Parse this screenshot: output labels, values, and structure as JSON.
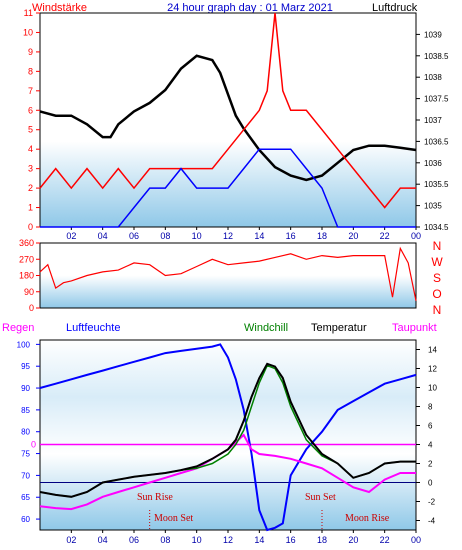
{
  "header": {
    "left_label": "Windstärke",
    "title": "24 hour graph day : 01 Marz 2021",
    "right_label": "Luftdruck"
  },
  "top_chart": {
    "type": "line",
    "wind_ticks": [
      "0",
      "1",
      "2",
      "3",
      "4",
      "5",
      "6",
      "7",
      "8",
      "9",
      "10",
      "11"
    ],
    "pressure_ticks": [
      "1034.5",
      "1035",
      "1035.5",
      "1036",
      "1036.5",
      "1037",
      "1037.5",
      "1038",
      "1038.5",
      "1039"
    ],
    "x_ticks": [
      "02",
      "04",
      "06",
      "08",
      "10",
      "12",
      "14",
      "16",
      "18",
      "20",
      "22",
      "00"
    ],
    "wind_ylim": [
      0,
      11
    ],
    "pressure_ylim": [
      1034.5,
      1039.5
    ],
    "series": [
      {
        "color": "#000000",
        "axis": "right",
        "x": [
          0,
          1,
          2,
          3,
          4,
          4.5,
          5,
          6,
          7,
          8,
          9,
          10,
          11,
          11.5,
          12,
          12.5,
          13,
          14,
          15,
          16,
          17,
          18,
          19,
          20,
          21,
          22,
          23,
          24
        ],
        "y": [
          1037.2,
          1037.1,
          1037.1,
          1036.9,
          1036.6,
          1036.6,
          1036.9,
          1037.2,
          1037.4,
          1037.7,
          1038.2,
          1038.5,
          1038.4,
          1038.1,
          1037.6,
          1037.1,
          1036.8,
          1036.3,
          1035.9,
          1035.7,
          1035.6,
          1035.7,
          1036.0,
          1036.3,
          1036.4,
          1036.4,
          1036.35,
          1036.3
        ]
      },
      {
        "color": "#ff0000",
        "axis": "left",
        "x": [
          0,
          1,
          2,
          3,
          4,
          5,
          6,
          7,
          8,
          9,
          10,
          11,
          12,
          13,
          14,
          14.5,
          15,
          15.5,
          16,
          17,
          18,
          19,
          20,
          21,
          22,
          23,
          24
        ],
        "y": [
          2,
          3,
          2,
          3,
          2,
          3,
          2,
          3,
          3,
          3,
          3,
          3,
          4,
          5,
          6,
          7,
          11,
          7,
          6,
          6,
          5,
          4,
          3,
          2,
          1,
          2,
          2
        ]
      },
      {
        "color": "#0000ff",
        "axis": "left",
        "x": [
          0,
          1,
          2,
          3,
          4,
          5,
          6,
          7,
          8,
          9,
          10,
          11,
          12,
          13,
          14,
          15,
          16,
          17,
          18,
          19,
          20,
          21,
          22,
          23,
          24
        ],
        "y": [
          0,
          0,
          0,
          0,
          0,
          0,
          1,
          2,
          2,
          3,
          2,
          2,
          2,
          3,
          4,
          4,
          4,
          3,
          2,
          0,
          0,
          0,
          0,
          0,
          0
        ]
      }
    ]
  },
  "mid_chart": {
    "type": "line",
    "y_ticks": [
      "0",
      "90",
      "180",
      "270",
      "360"
    ],
    "ylim": [
      0,
      360
    ],
    "compass": [
      "N",
      "W",
      "S",
      "O",
      "N"
    ],
    "x": [
      0,
      0.5,
      1,
      1.5,
      2,
      3,
      4,
      5,
      6,
      7,
      8,
      9,
      10,
      11,
      12,
      13,
      14,
      15,
      16,
      17,
      18,
      19,
      20,
      21,
      22,
      22.5,
      23,
      23.5,
      24
    ],
    "y": [
      200,
      240,
      110,
      140,
      150,
      180,
      200,
      210,
      250,
      240,
      180,
      190,
      230,
      270,
      240,
      250,
      260,
      280,
      300,
      270,
      290,
      280,
      290,
      290,
      290,
      60,
      330,
      250,
      40
    ]
  },
  "bottom_chart": {
    "type": "line",
    "labels": {
      "regen": "Regen",
      "luftfeuchte": "Luftfeuchte",
      "windchill": "Windchill",
      "temperatur": "Temperatur",
      "taupunkt": "Taupunkt"
    },
    "humidity_ticks": [
      "60",
      "65",
      "70",
      "75",
      "80",
      "85",
      "90",
      "95",
      "100"
    ],
    "humidity_ylim": [
      57.5,
      101
    ],
    "temp_ticks": [
      "-4",
      "-2",
      "0",
      "2",
      "4",
      "6",
      "8",
      "10",
      "12",
      "14"
    ],
    "temp_ylim": [
      -5,
      15
    ],
    "rain_tick": "0",
    "x_ticks": [
      "02",
      "04",
      "06",
      "08",
      "10",
      "12",
      "14",
      "16",
      "18",
      "20",
      "22",
      "00"
    ],
    "annotations": {
      "sun_rise": "Sun Rise",
      "moon_set": "Moon Set",
      "sun_set": "Sun Set",
      "moon_rise": "Moon Rise"
    },
    "humidity": {
      "color": "#0000ff",
      "x": [
        0,
        1,
        2,
        3,
        4,
        5,
        6,
        7,
        8,
        9,
        10,
        11,
        11.5,
        12,
        12.5,
        13,
        13.5,
        14,
        14.5,
        15,
        15.5,
        16,
        17,
        18,
        19,
        20,
        21,
        22,
        23,
        24
      ],
      "y": [
        90,
        91,
        92,
        93,
        94,
        95,
        96,
        97,
        98,
        98.5,
        99,
        99.5,
        100,
        97,
        92,
        85,
        75,
        62,
        57.5,
        58,
        59,
        70,
        76,
        80,
        85,
        87,
        89,
        91,
        92,
        93
      ]
    },
    "temperature": {
      "color": "#000000",
      "x": [
        0,
        1,
        2,
        3,
        4,
        5,
        6,
        7,
        8,
        9,
        10,
        11,
        12,
        12.5,
        13,
        13.5,
        14,
        14.5,
        15,
        15.5,
        16,
        17,
        18,
        19,
        20,
        21,
        22,
        23,
        24
      ],
      "y": [
        -1.0,
        -1.3,
        -1.5,
        -1.0,
        0.0,
        0.3,
        0.6,
        0.8,
        1.0,
        1.3,
        1.7,
        2.5,
        3.5,
        4.5,
        6.5,
        9.0,
        11.0,
        12.5,
        12.2,
        11.0,
        8.5,
        5.0,
        3.0,
        2.0,
        0.5,
        1.0,
        2.0,
        2.2,
        2.2
      ]
    },
    "windchill": {
      "color": "#008000",
      "x": [
        0,
        1,
        2,
        3,
        4,
        5,
        6,
        7,
        8,
        9,
        10,
        11,
        12,
        12.5,
        13,
        13.5,
        14,
        14.5,
        15,
        15.5,
        16,
        17,
        18,
        19,
        20,
        21,
        22,
        23,
        24
      ],
      "y": [
        -1.0,
        -1.3,
        -1.5,
        -1.0,
        0.0,
        0.3,
        0.6,
        0.8,
        1.0,
        1.3,
        1.5,
        2.0,
        3.0,
        4.0,
        5.5,
        8.0,
        10.5,
        12.3,
        12.0,
        10.5,
        8.0,
        4.5,
        2.8,
        2.0,
        0.5,
        1.0,
        2.0,
        2.2,
        2.2
      ]
    },
    "dewpoint": {
      "color": "#ff00ff",
      "x": [
        0,
        1,
        2,
        3,
        4,
        5,
        6,
        7,
        8,
        9,
        10,
        11,
        12,
        13,
        13.5,
        14,
        15,
        16,
        17,
        18,
        19,
        20,
        21,
        22,
        23,
        24
      ],
      "y": [
        -2.5,
        -2.7,
        -2.8,
        -2.3,
        -1.5,
        -1.0,
        -0.5,
        0.0,
        0.5,
        1.0,
        1.5,
        2.5,
        3.5,
        5.0,
        3.5,
        3.0,
        2.8,
        2.5,
        2.0,
        1.5,
        0.5,
        -0.5,
        -1.0,
        0.3,
        1.0,
        1.0
      ]
    },
    "rain": {
      "color": "#ff00ff",
      "value": 0
    }
  }
}
